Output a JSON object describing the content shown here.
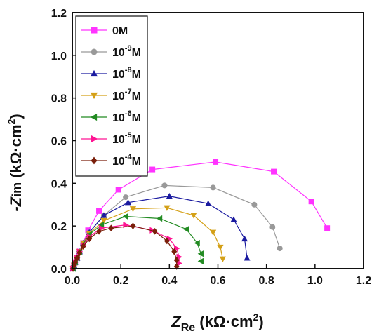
{
  "chart_data": {
    "type": "scatter",
    "xlim": [
      0.0,
      1.2
    ],
    "ylim": [
      0.0,
      1.2
    ],
    "x_ticks": [
      "0.0",
      "0.2",
      "0.4",
      "0.6",
      "0.8",
      "1.0",
      "1.2"
    ],
    "y_ticks": [
      "0.0",
      "0.2",
      "0.4",
      "0.6",
      "0.8",
      "1.0",
      "1.2"
    ],
    "xlabel": {
      "prefix": "Z",
      "sub": "Re",
      "unit": "(kΩ·cm",
      "sup": "2",
      "close": ")"
    },
    "ylabel": {
      "prefix": "-Z",
      "sub": "im",
      "unit": "(kΩ·cm",
      "sup": "2",
      "close": ")"
    },
    "legend_position": "top-left",
    "series": [
      {
        "name": {
          "base": "0M",
          "exp": ""
        },
        "color": "#ff33ff",
        "marker": "square",
        "x": [
          0.003,
          0.007,
          0.012,
          0.02,
          0.03,
          0.045,
          0.065,
          0.11,
          0.19,
          0.33,
          0.59,
          0.83,
          0.985,
          1.05
        ],
        "y": [
          0.0,
          0.015,
          0.03,
          0.05,
          0.08,
          0.12,
          0.18,
          0.27,
          0.37,
          0.465,
          0.5,
          0.455,
          0.315,
          0.19
        ]
      },
      {
        "name": {
          "base": "10",
          "exp": "-9",
          "unit": "M"
        },
        "color": "#999999",
        "marker": "circle",
        "x": [
          0.003,
          0.007,
          0.012,
          0.02,
          0.03,
          0.045,
          0.07,
          0.13,
          0.22,
          0.38,
          0.58,
          0.75,
          0.825,
          0.855
        ],
        "y": [
          0.0,
          0.015,
          0.03,
          0.05,
          0.08,
          0.12,
          0.17,
          0.25,
          0.335,
          0.39,
          0.38,
          0.3,
          0.195,
          0.095
        ]
      },
      {
        "name": {
          "base": "10",
          "exp": "-8",
          "unit": "M"
        },
        "color": "#1a1aa0",
        "marker": "triangle-up",
        "x": [
          0.003,
          0.007,
          0.012,
          0.02,
          0.03,
          0.045,
          0.07,
          0.13,
          0.23,
          0.4,
          0.56,
          0.665,
          0.71,
          0.72
        ],
        "y": [
          0.0,
          0.015,
          0.03,
          0.05,
          0.08,
          0.12,
          0.17,
          0.25,
          0.31,
          0.34,
          0.305,
          0.23,
          0.14,
          0.05
        ]
      },
      {
        "name": {
          "base": "10",
          "exp": "-7",
          "unit": "M"
        },
        "color": "#d4a017",
        "marker": "triangle-down",
        "x": [
          0.003,
          0.007,
          0.012,
          0.02,
          0.03,
          0.045,
          0.07,
          0.13,
          0.25,
          0.39,
          0.5,
          0.58,
          0.61,
          0.62
        ],
        "y": [
          0.0,
          0.015,
          0.03,
          0.05,
          0.08,
          0.12,
          0.165,
          0.225,
          0.28,
          0.285,
          0.25,
          0.17,
          0.1,
          0.045
        ]
      },
      {
        "name": {
          "base": "10",
          "exp": "-6",
          "unit": "M"
        },
        "color": "#228b22",
        "marker": "triangle-left",
        "x": [
          0.003,
          0.007,
          0.012,
          0.02,
          0.03,
          0.045,
          0.07,
          0.12,
          0.22,
          0.36,
          0.47,
          0.515,
          0.53,
          0.53
        ],
        "y": [
          0.0,
          0.015,
          0.03,
          0.05,
          0.08,
          0.115,
          0.16,
          0.205,
          0.245,
          0.235,
          0.185,
          0.12,
          0.07,
          0.035
        ]
      },
      {
        "name": {
          "base": "10",
          "exp": "-5",
          "unit": "M"
        },
        "color": "#ff1493",
        "marker": "triangle-right",
        "x": [
          0.003,
          0.007,
          0.012,
          0.02,
          0.03,
          0.045,
          0.07,
          0.12,
          0.22,
          0.33,
          0.4,
          0.43,
          0.44,
          0.44
        ],
        "y": [
          0.0,
          0.015,
          0.03,
          0.05,
          0.08,
          0.11,
          0.15,
          0.19,
          0.205,
          0.18,
          0.14,
          0.095,
          0.055,
          0.025
        ]
      },
      {
        "name": {
          "base": "10",
          "exp": "-4",
          "unit": "M"
        },
        "color": "#7a1f0a",
        "marker": "diamond",
        "x": [
          0.003,
          0.007,
          0.012,
          0.02,
          0.03,
          0.045,
          0.07,
          0.11,
          0.16,
          0.25,
          0.34,
          0.39,
          0.42,
          0.43,
          0.43
        ],
        "y": [
          0.0,
          0.015,
          0.03,
          0.05,
          0.075,
          0.105,
          0.14,
          0.175,
          0.19,
          0.2,
          0.175,
          0.13,
          0.08,
          0.04,
          0.01
        ]
      }
    ]
  }
}
